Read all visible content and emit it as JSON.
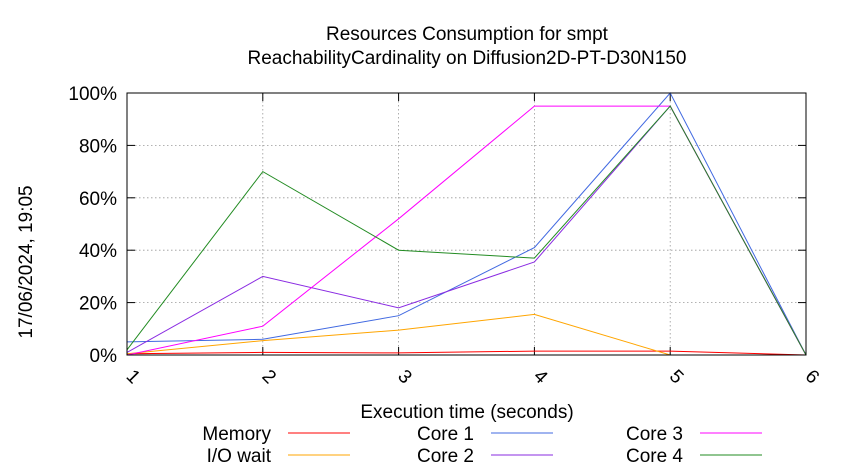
{
  "chart_data": {
    "type": "line",
    "title": "Resources Consumption for smpt",
    "subtitle": "ReachabilityCardinality on Diffusion2D-PT-D30N150",
    "xlabel": "Execution time (seconds)",
    "ylabel": "",
    "side_label": "17/06/2024, 19:05",
    "x": [
      1,
      2,
      3,
      4,
      5,
      6
    ],
    "xlim": [
      1,
      6
    ],
    "ylim": [
      0,
      100
    ],
    "y_ticks": [
      "0%",
      "20%",
      "40%",
      "60%",
      "80%",
      "100%"
    ],
    "x_ticks": [
      "1",
      "2",
      "3",
      "4",
      "5",
      "6"
    ],
    "grid": true,
    "legend_position": "bottom",
    "series": [
      {
        "name": "Memory",
        "color": "#ff0000",
        "values": [
          0.5,
          1,
          0.8,
          1.5,
          1.5,
          0
        ]
      },
      {
        "name": "I/O wait",
        "color": "#ffa500",
        "values": [
          0.5,
          5.5,
          9.5,
          15.5,
          0,
          0
        ]
      },
      {
        "name": "Core 1",
        "color": "#4169e1",
        "values": [
          5,
          6,
          15,
          41,
          100,
          0
        ]
      },
      {
        "name": "Core 2",
        "color": "#8a2be2",
        "values": [
          1,
          30,
          18,
          35.5,
          95,
          0
        ]
      },
      {
        "name": "Core 3",
        "color": "#ff00ff",
        "values": [
          0,
          11,
          52,
          95,
          95,
          0
        ]
      },
      {
        "name": "Core 4",
        "color": "#228b22",
        "values": [
          2,
          70,
          40,
          37,
          95,
          0
        ]
      }
    ]
  }
}
